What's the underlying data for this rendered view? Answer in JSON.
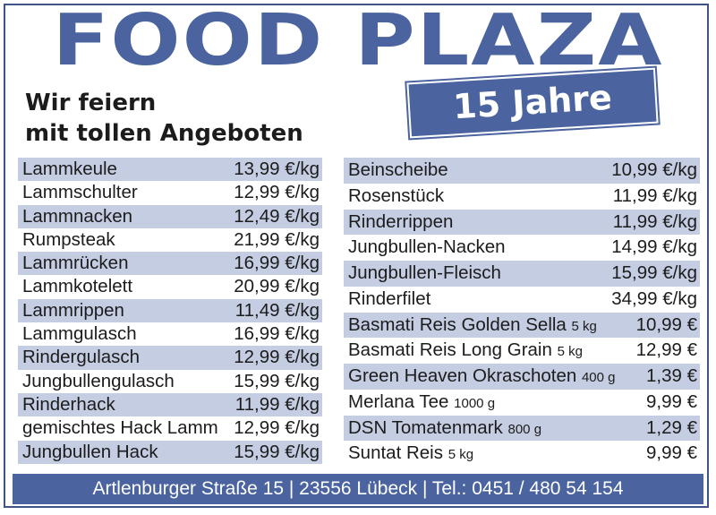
{
  "header": {
    "title": "FOOD PLAZA",
    "badge": "15 Jahre",
    "tagline_line1": "Wir feiern",
    "tagline_line2": "mit tollen Angeboten"
  },
  "left_items": [
    {
      "name": "Lammkeule",
      "qty": "",
      "price": "13,99 €/kg"
    },
    {
      "name": "Lammschulter",
      "qty": "",
      "price": "12,99 €/kg"
    },
    {
      "name": "Lammnacken",
      "qty": "",
      "price": "12,49 €/kg"
    },
    {
      "name": "Rumpsteak",
      "qty": "",
      "price": "21,99 €/kg"
    },
    {
      "name": "Lammrücken",
      "qty": "",
      "price": "16,99 €/kg"
    },
    {
      "name": "Lammkotelett",
      "qty": "",
      "price": "20,99 €/kg"
    },
    {
      "name": "Lammrippen",
      "qty": "",
      "price": "11,49 €/kg"
    },
    {
      "name": "Lammgulasch",
      "qty": "",
      "price": "16,99 €/kg"
    },
    {
      "name": "Rindergulasch",
      "qty": "",
      "price": "12,99 €/kg"
    },
    {
      "name": "Jungbullengulasch",
      "qty": "",
      "price": "15,99 €/kg"
    },
    {
      "name": "Rinderhack",
      "qty": "",
      "price": "11,99 €/kg"
    },
    {
      "name": "gemischtes Hack Lamm",
      "qty": "",
      "price": "12,99 €/kg"
    },
    {
      "name": "Jungbullen Hack",
      "qty": "",
      "price": "15,99 €/kg"
    }
  ],
  "right_items": [
    {
      "name": "Beinscheibe",
      "qty": "",
      "price": "10,99 €/kg"
    },
    {
      "name": "Rosenstück",
      "qty": "",
      "price": "11,99 €/kg"
    },
    {
      "name": "Rinderrippen",
      "qty": "",
      "price": "11,99 €/kg"
    },
    {
      "name": "Jungbullen-Nacken",
      "qty": "",
      "price": "14,99 €/kg"
    },
    {
      "name": "Jungbullen-Fleisch",
      "qty": "",
      "price": "15,99 €/kg"
    },
    {
      "name": "Rinderfilet",
      "qty": "",
      "price": "34,99 €/kg"
    },
    {
      "name": "Basmati Reis Golden Sella",
      "qty": "5 kg",
      "price": "10,99 €"
    },
    {
      "name": "Basmati Reis Long Grain",
      "qty": "5 kg",
      "price": "12,99 €"
    },
    {
      "name": "Green Heaven Okraschoten",
      "qty": "400 g",
      "price": "1,39 €"
    },
    {
      "name": "Merlana Tee",
      "qty": "1000 g",
      "price": "9,99 €"
    },
    {
      "name": "DSN Tomatenmark",
      "qty": "800 g",
      "price": "1,29 €"
    },
    {
      "name": "Suntat Reis",
      "qty": "5 kg",
      "price": "9,99 €"
    }
  ],
  "footer": {
    "text": "Artlenburger Straße 15 | 23556 Lübeck | Tel.: 0451 / 480 54 154"
  },
  "colors": {
    "brand_blue": "#4b64a0",
    "row_shade": "#c5cde3"
  }
}
